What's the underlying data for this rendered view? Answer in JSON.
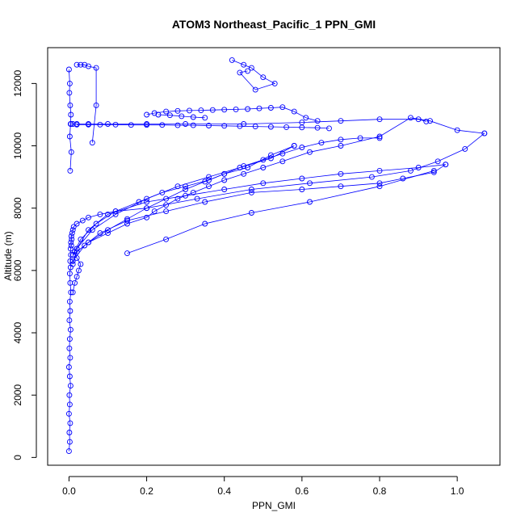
{
  "chart_data": {
    "type": "scatter",
    "title": "ATOM3 Northeast_Pacific_1 PPN_GMI",
    "xlabel": "PPN_GMI",
    "ylabel": "Altitude (m)",
    "xlim": [
      -0.055,
      1.11
    ],
    "ylim": [
      -250,
      13150
    ],
    "xticks": [
      0.0,
      0.2,
      0.4,
      0.6,
      0.8,
      1.0
    ],
    "xtick_labels": [
      "0.0",
      "0.2",
      "0.4",
      "0.6",
      "0.8",
      "1.0"
    ],
    "yticks": [
      0,
      2000,
      4000,
      6000,
      8000,
      10000,
      12000
    ],
    "ytick_labels": [
      "0",
      "2000",
      "4000",
      "6000",
      "8000",
      "10000",
      "12000"
    ],
    "color": "#0000ff",
    "marker": "open-circle",
    "connect_points": true,
    "grid": false,
    "legend": false,
    "series": [
      {
        "x": [
          0.0,
          0.002,
          0.001,
          0.003,
          0.0,
          0.002,
          0.001,
          0.004,
          0.002,
          0.0,
          0.003,
          0.001,
          0.002,
          0.004,
          0.001,
          0.003,
          0.002,
          0.005,
          0.003,
          0.002,
          0.004,
          0.003,
          0.005,
          0.004,
          0.006,
          0.005,
          0.007,
          0.006,
          0.008,
          0.01,
          0.012,
          0.02,
          0.035,
          0.05,
          0.08,
          0.12,
          0.2,
          0.33,
          0.47,
          0.62,
          0.78,
          0.88,
          0.95,
          1.02,
          1.07
        ],
        "y": [
          200,
          500,
          800,
          1100,
          1400,
          1700,
          2000,
          2300,
          2600,
          2900,
          3200,
          3500,
          3800,
          4100,
          4400,
          4700,
          5000,
          5300,
          5600,
          5900,
          6100,
          6300,
          6500,
          6700,
          6800,
          6900,
          7000,
          7100,
          7200,
          7300,
          7400,
          7500,
          7600,
          7700,
          7800,
          7900,
          8000,
          8300,
          8600,
          8800,
          9000,
          9200,
          9500,
          9900,
          10400
        ]
      },
      {
        "x": [
          1.07,
          1.0,
          0.93,
          0.88,
          0.8,
          0.7,
          0.62,
          0.55,
          0.5,
          0.45,
          0.4,
          0.36,
          0.32,
          0.28,
          0.25,
          0.22,
          0.2,
          0.15,
          0.1,
          0.05,
          0.02,
          0.01
        ],
        "y": [
          10400,
          10500,
          10800,
          10900,
          10300,
          10000,
          9800,
          9500,
          9300,
          9100,
          8900,
          8700,
          8500,
          8300,
          8100,
          7900,
          7700,
          7500,
          7200,
          6900,
          6600,
          6200
        ]
      },
      {
        "x": [
          0.01,
          0.04,
          0.08,
          0.15,
          0.25,
          0.35,
          0.47,
          0.6,
          0.7,
          0.8,
          0.86,
          0.94,
          0.97
        ],
        "y": [
          6300,
          6800,
          7200,
          7600,
          7900,
          8200,
          8500,
          8600,
          8700,
          8800,
          8950,
          9150,
          9400
        ]
      },
      {
        "x": [
          0.97,
          0.9,
          0.8,
          0.7,
          0.6,
          0.5,
          0.4,
          0.3,
          0.2,
          0.1,
          0.05,
          0.02
        ],
        "y": [
          9400,
          9300,
          9200,
          9100,
          8950,
          8800,
          8600,
          8400,
          8200,
          7800,
          7300,
          6700
        ]
      },
      {
        "x": [
          0.02,
          0.06,
          0.12,
          0.2,
          0.28,
          0.36,
          0.44,
          0.52,
          0.58
        ],
        "y": [
          6700,
          7300,
          7800,
          8300,
          8700,
          9000,
          9300,
          9600,
          10000
        ]
      },
      {
        "x": [
          0.58,
          0.52,
          0.46,
          0.4,
          0.36,
          0.3,
          0.24,
          0.18,
          0.12,
          0.07,
          0.03,
          0.01
        ],
        "y": [
          10000,
          9700,
          9300,
          9100,
          8900,
          8700,
          8500,
          8200,
          7900,
          7500,
          7000,
          6500
        ]
      },
      {
        "x": [
          0.01,
          0.05,
          0.1,
          0.15,
          0.2,
          0.25,
          0.3,
          0.35,
          0.4,
          0.45,
          0.5,
          0.55,
          0.6,
          0.65,
          0.7,
          0.75,
          0.8
        ],
        "y": [
          6500,
          6900,
          7300,
          7650,
          8000,
          8300,
          8600,
          8850,
          9100,
          9350,
          9550,
          9750,
          9950,
          10100,
          10200,
          10250,
          10250
        ]
      },
      {
        "x": [
          0.02,
          0.05,
          0.08,
          0.12,
          0.16,
          0.2,
          0.24,
          0.28,
          0.32,
          0.36,
          0.4,
          0.44,
          0.48,
          0.52,
          0.56,
          0.6,
          0.64,
          0.67
        ],
        "y": [
          10680,
          10680,
          10680,
          10680,
          10670,
          10670,
          10670,
          10660,
          10660,
          10650,
          10640,
          10630,
          10620,
          10610,
          10600,
          10590,
          10580,
          10560
        ]
      },
      {
        "x": [
          0.2,
          0.22,
          0.25,
          0.28,
          0.31,
          0.34,
          0.37,
          0.4,
          0.43,
          0.46,
          0.49,
          0.52,
          0.55,
          0.58,
          0.61,
          0.64
        ],
        "y": [
          11000,
          11050,
          11100,
          11120,
          11130,
          11140,
          11150,
          11160,
          11170,
          11180,
          11200,
          11220,
          11240,
          11100,
          10900,
          10800
        ]
      },
      {
        "x": [
          0.23,
          0.26,
          0.29,
          0.32,
          0.35
        ],
        "y": [
          11000,
          10980,
          10950,
          10920,
          10900
        ]
      },
      {
        "x": [
          0.42,
          0.45,
          0.47,
          0.5,
          0.53,
          0.48,
          0.44,
          0.46
        ],
        "y": [
          12750,
          12600,
          12500,
          12200,
          12000,
          11800,
          12350,
          12400
        ]
      },
      {
        "x": [
          0.02,
          0.03,
          0.04,
          0.05,
          0.07,
          0.07,
          0.06
        ],
        "y": [
          12600,
          12600,
          12600,
          12550,
          12500,
          11300,
          10100
        ]
      },
      {
        "x": [
          0.0,
          0.002,
          0.001,
          0.003,
          0.005,
          0.004,
          0.002,
          0.006,
          0.003
        ],
        "y": [
          12450,
          12000,
          11700,
          11300,
          11000,
          10700,
          10300,
          9800,
          9200
        ]
      },
      {
        "x": [
          0.005,
          0.01,
          0.02,
          0.05,
          0.1,
          0.2,
          0.3,
          0.45,
          0.6,
          0.7,
          0.8,
          0.9,
          0.92
        ],
        "y": [
          10700,
          10700,
          10700,
          10700,
          10700,
          10700,
          10700,
          10700,
          10750,
          10800,
          10850,
          10850,
          10780
        ]
      },
      {
        "x": [
          0.15,
          0.25,
          0.35,
          0.47,
          0.62,
          0.8,
          0.94
        ],
        "y": [
          6550,
          7000,
          7500,
          7850,
          8200,
          8700,
          9200
        ]
      },
      {
        "x": [
          0.01,
          0.015,
          0.02,
          0.025,
          0.03,
          0.02,
          0.015
        ],
        "y": [
          5300,
          5600,
          5800,
          6000,
          6200,
          6400,
          6600
        ]
      }
    ]
  }
}
